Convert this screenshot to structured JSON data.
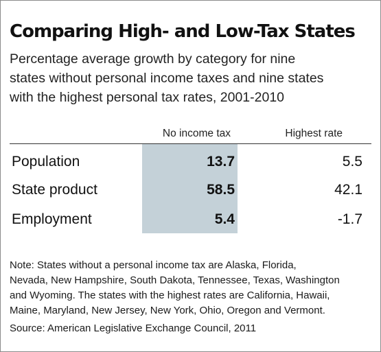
{
  "chart_data": {
    "type": "table",
    "title": "Comparing High- and Low-Tax States",
    "subtitle_lines": [
      "Percentage average growth by category for nine",
      "states without personal income taxes and nine states",
      "with the highest personal tax rates, 2001-2010"
    ],
    "columns": [
      "No income tax",
      "Highest rate"
    ],
    "rows": [
      {
        "label": "Population",
        "values": [
          "13.7",
          "5.5"
        ]
      },
      {
        "label": "State product",
        "values": [
          "58.5",
          "42.1"
        ]
      },
      {
        "label": "Employment",
        "values": [
          "5.4",
          "-1.7"
        ]
      }
    ],
    "highlight_column": "No income tax",
    "highlight_color": "#c4d1d8",
    "note_lines": [
      "Note: States without a personal income tax are Alaska, Florida,",
      "Nevada, New Hampshire, South Dakota, Tennessee, Texas, Washington",
      "and Wyoming. The states with the highest rates are California, Hawaii,",
      "Maine, Maryland, New Jersey, New York, Ohio, Oregon and Vermont."
    ],
    "source": "Source: American Legislative Exchange Council, 2011"
  }
}
